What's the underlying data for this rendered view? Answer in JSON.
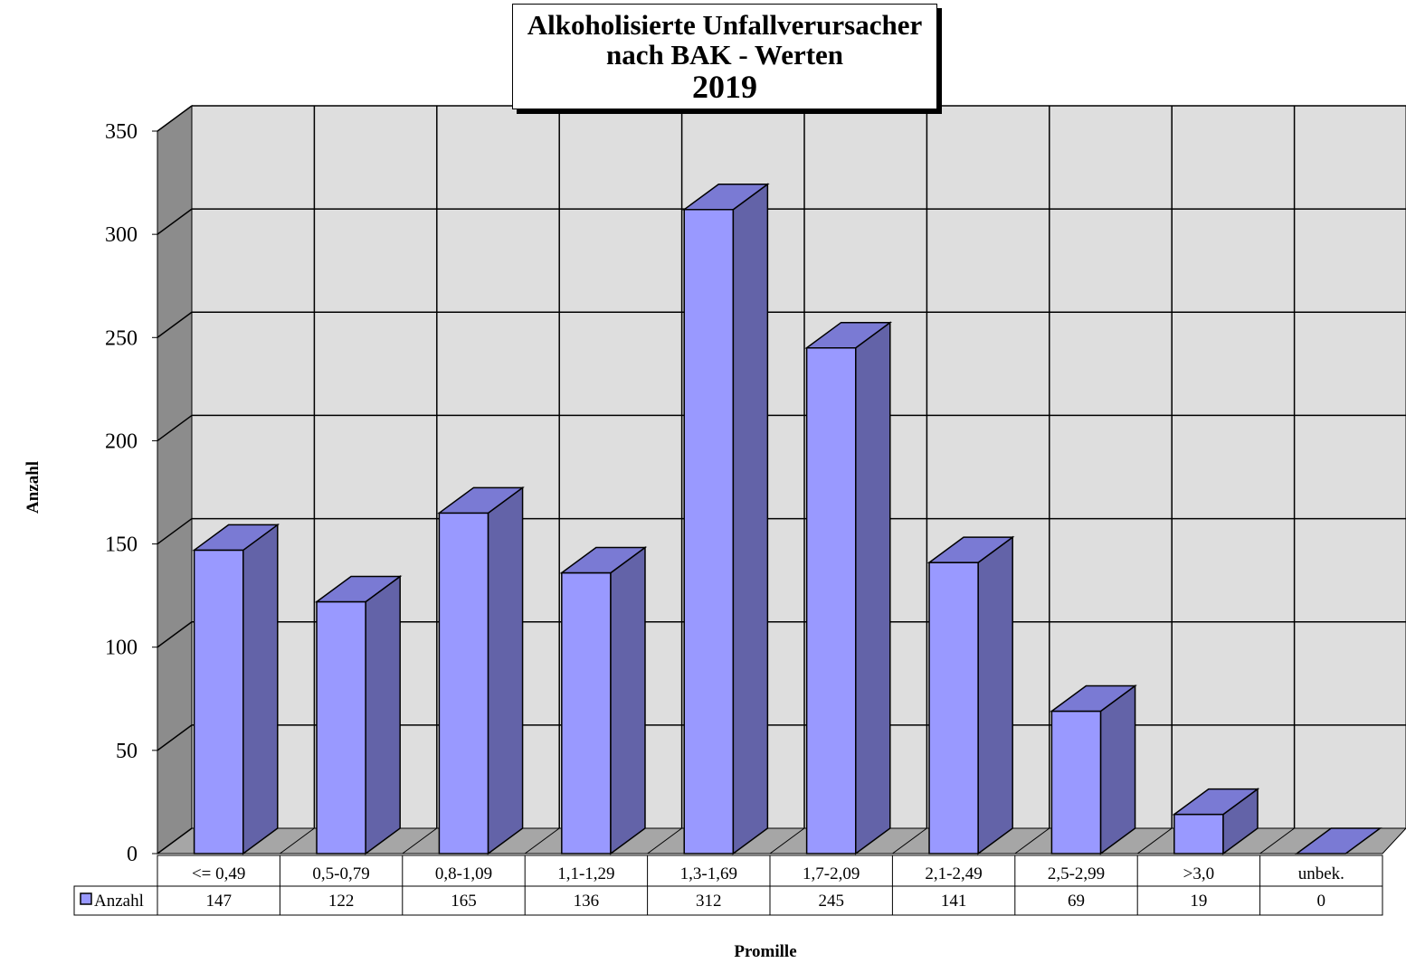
{
  "chart_data": {
    "type": "bar",
    "title": "Alkoholisierte Unfallverursacher nach BAK - Werten",
    "title_lines": [
      "Alkoholisierte Unfallverursacher",
      "nach BAK - Werten"
    ],
    "year": "2019",
    "xlabel": "Promille",
    "ylabel": "Anzahl",
    "ylim": [
      0,
      350
    ],
    "yticks": [
      0,
      50,
      100,
      150,
      200,
      250,
      300,
      350
    ],
    "categories": [
      "<= 0,49",
      "0,5-0,79",
      "0,8-1,09",
      "1,1-1,29",
      "1,3-1,69",
      "1,7-2,09",
      "2,1-2,49",
      "2,5-2,99",
      ">3,0",
      "unbek."
    ],
    "series": [
      {
        "name": "Anzahl",
        "values": [
          147,
          122,
          165,
          136,
          312,
          245,
          141,
          69,
          19,
          0
        ]
      }
    ],
    "data_table": true,
    "grid": true,
    "legend": "data-table-left",
    "colors": {
      "bar_front": "#9999ff",
      "bar_side": "#6363a8",
      "bar_top": "#7a7ad4",
      "wall": "#dedede",
      "side_wall": "#8c8c8c",
      "floor": "#a6a6a6"
    }
  }
}
